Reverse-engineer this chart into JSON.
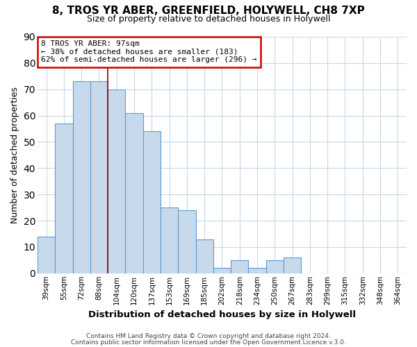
{
  "title": "8, TROS YR ABER, GREENFIELD, HOLYWELL, CH8 7XP",
  "subtitle": "Size of property relative to detached houses in Holywell",
  "xlabel": "Distribution of detached houses by size in Holywell",
  "ylabel": "Number of detached properties",
  "bar_labels": [
    "39sqm",
    "55sqm",
    "72sqm",
    "88sqm",
    "104sqm",
    "120sqm",
    "137sqm",
    "153sqm",
    "169sqm",
    "185sqm",
    "202sqm",
    "218sqm",
    "234sqm",
    "250sqm",
    "267sqm",
    "283sqm",
    "299sqm",
    "315sqm",
    "332sqm",
    "348sqm",
    "364sqm"
  ],
  "bar_values": [
    14,
    57,
    73,
    73,
    70,
    61,
    54,
    25,
    24,
    13,
    2,
    5,
    2,
    5,
    6,
    0,
    0,
    0,
    0,
    0,
    0
  ],
  "bar_color": "#c8d9ec",
  "bar_edge_color": "#5b9bd5",
  "ylim": [
    0,
    90
  ],
  "yticks": [
    0,
    10,
    20,
    30,
    40,
    50,
    60,
    70,
    80,
    90
  ],
  "property_line_x": 3.5,
  "property_line_color": "#8b0000",
  "annotation_title": "8 TROS YR ABER: 97sqm",
  "annotation_line1": "← 38% of detached houses are smaller (183)",
  "annotation_line2": "62% of semi-detached houses are larger (296) →",
  "annotation_box_color": "#ffffff",
  "annotation_box_edge": "#cc0000",
  "footer_line1": "Contains HM Land Registry data © Crown copyright and database right 2024.",
  "footer_line2": "Contains public sector information licensed under the Open Government Licence v.3.0.",
  "background_color": "#ffffff",
  "grid_color": "#c8d9ec"
}
